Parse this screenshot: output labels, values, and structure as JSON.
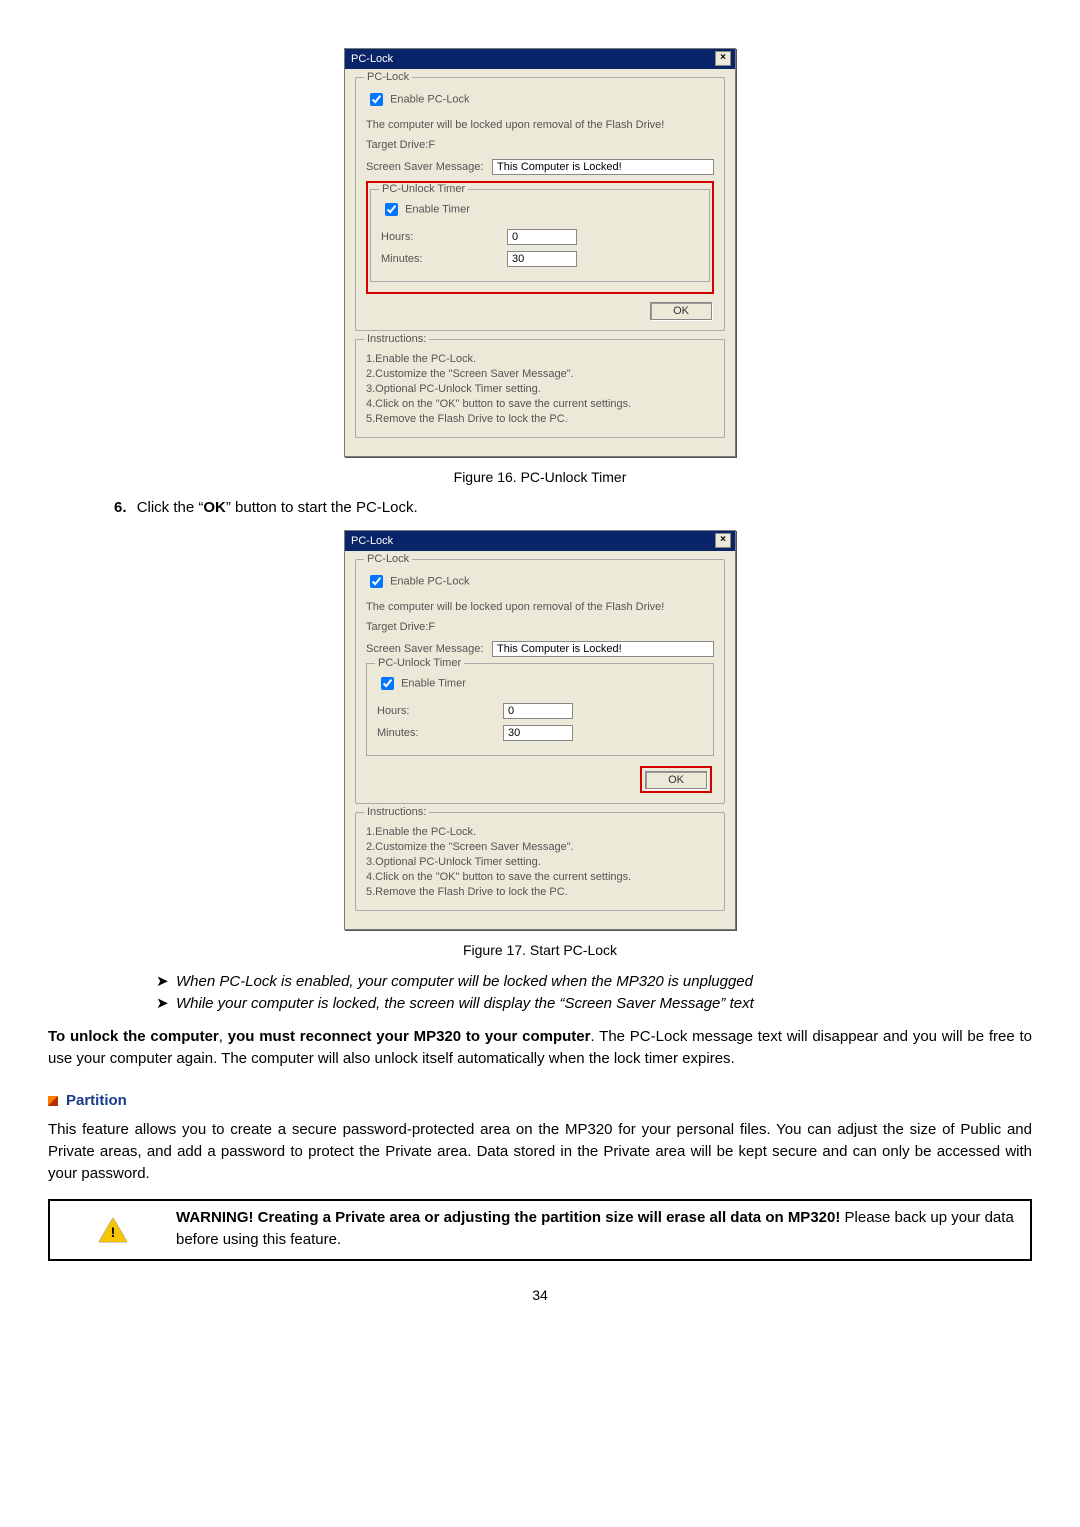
{
  "dialog": {
    "title": "PC-Lock",
    "group1_legend": "PC-Lock",
    "enable_label": "Enable PC-Lock",
    "info_line": "The computer will be locked upon removal of the Flash Drive!",
    "target_label": "Target Drive:F",
    "msg_label": "Screen Saver Message:",
    "msg_value": "This Computer is Locked!",
    "timer_legend": "PC-Unlock Timer",
    "enable_timer_label": "Enable Timer",
    "hours_label": "Hours:",
    "hours_value": "0",
    "minutes_label": "Minutes:",
    "minutes_value": "30",
    "ok_label": "OK",
    "instr_legend": "Instructions:",
    "instr1": "1.Enable the PC-Lock.",
    "instr2": "2.Customize the \"Screen Saver Message\".",
    "instr3": "3.Optional PC-Unlock Timer setting.",
    "instr4": "4.Click on the \"OK\" button to save the current settings.",
    "instr5": "5.Remove the Flash Drive to lock the PC."
  },
  "captions": {
    "fig16": "Figure 16. PC-Unlock Timer",
    "fig17": "Figure 17. Start PC-Lock"
  },
  "step6": {
    "num": "6.",
    "pre": "Click the “",
    "ok": "OK",
    "post": "” button to start the PC-Lock."
  },
  "bullets": {
    "b1": "When PC-Lock is enabled, your computer will be locked when the MP320 is unplugged",
    "b2": "While your computer is locked, the screen will display the “Screen Saver Message” text"
  },
  "unlock_para": {
    "bold1": "To unlock the computer",
    "mid1": ", ",
    "bold2": "you must reconnect your MP320 to your computer",
    "tail": ". The PC-Lock message text will disappear and you will be free to use your computer again. The computer will also unlock itself automatically when the lock timer expires."
  },
  "partition": {
    "heading": "Partition",
    "para": "This feature allows you to create a secure password-protected area on the MP320 for your personal files. You can adjust the size of Public and Private areas, and add a password to protect the Private area. Data stored in the Private area will be kept secure and can only be accessed with your password."
  },
  "warning": {
    "bold": "WARNING! Creating a Private area or adjusting the partition size will erase all data on MP320!",
    "rest": " Please back up your data before using this feature."
  },
  "page_number": "34"
}
